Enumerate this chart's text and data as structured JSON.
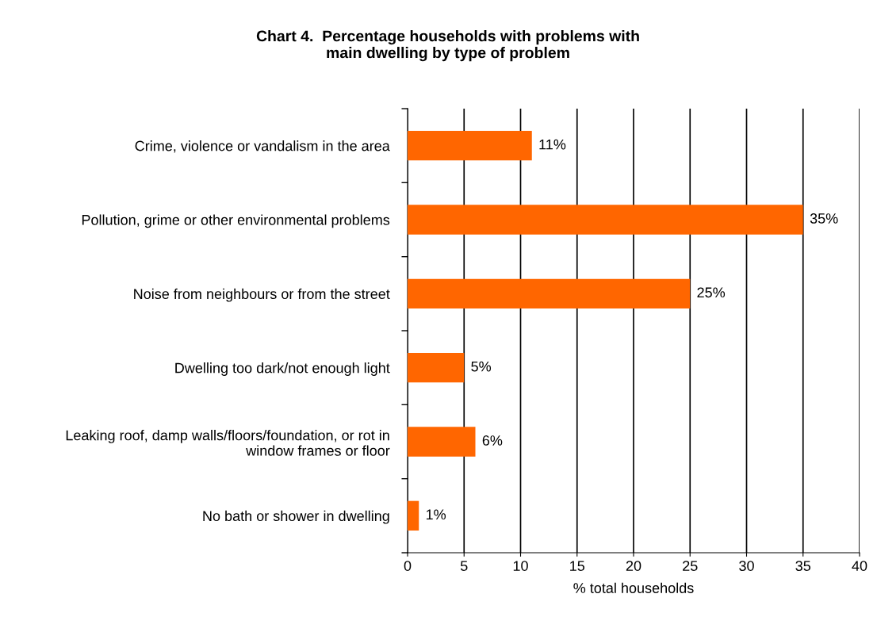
{
  "chart_data": {
    "type": "bar",
    "orientation": "horizontal",
    "title": "Chart 4.  Percentage households with problems with\nmain dwelling by type of problem",
    "categories": [
      "Crime, violence or vandalism in the area",
      "Pollution, grime or other environmental problems",
      "Noise from neighbours or from the street",
      "Dwelling too dark/not enough light",
      "Leaking roof, damp walls/floors/foundation, or rot in\nwindow frames or floor",
      "No bath or shower in dwelling"
    ],
    "values": [
      11,
      35,
      25,
      5,
      6,
      1
    ],
    "value_labels": [
      "11%",
      "35%",
      "25%",
      "5%",
      "6%",
      "1%"
    ],
    "color": "#ff6600",
    "xlabel": "% total households",
    "xlim": [
      0,
      40
    ],
    "xticks": [
      0,
      5,
      10,
      15,
      20,
      25,
      30,
      35,
      40
    ],
    "grid": "x"
  }
}
